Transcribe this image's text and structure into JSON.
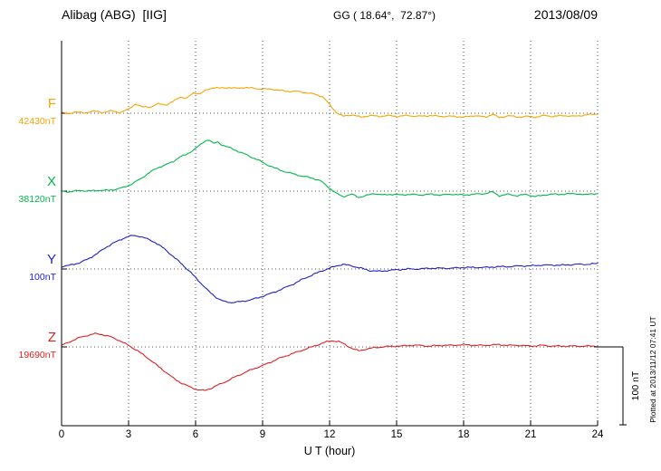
{
  "header": {
    "station": "Alibag (ABG)  [IIG]",
    "coords": "GG ( 18.64°,  72.87°)",
    "date": "2013/08/09"
  },
  "axis": {
    "xlabel": "U T (hour)"
  },
  "scalebar": {
    "label": "100 nT",
    "nT": 100
  },
  "footer": {
    "note": "Plotted at 2013/11/12 07:41 UT"
  },
  "chart_data": {
    "type": "line",
    "title": "Alibag (ABG) [IIG] magnetogram 2013/08/09",
    "xlabel": "U T (hour)",
    "ylabel": "",
    "x_range": [
      0,
      24
    ],
    "x_ticks": [
      0,
      3,
      6,
      9,
      12,
      15,
      18,
      21,
      24
    ],
    "baseline_spacing_nT": 100,
    "points_unit": "nT offset relative to each component baseline",
    "noise_nT": 1.1,
    "grid": "dotted vertical at 3h intervals, dotted horizontal at each baseline",
    "series": [
      {
        "name": "F",
        "baseline_label": "42430nT",
        "baseline_nT": 42430,
        "color": "#F5A400",
        "points": [
          [
            0,
            1
          ],
          [
            0.3,
            -1
          ],
          [
            0.6,
            2
          ],
          [
            1,
            0
          ],
          [
            1.4,
            3
          ],
          [
            1.8,
            1
          ],
          [
            2.2,
            3
          ],
          [
            2.6,
            1
          ],
          [
            3,
            5
          ],
          [
            3.3,
            12
          ],
          [
            3.6,
            8
          ],
          [
            4,
            8
          ],
          [
            4.3,
            12
          ],
          [
            4.7,
            11
          ],
          [
            5,
            15
          ],
          [
            5.3,
            21
          ],
          [
            5.6,
            19
          ],
          [
            5.9,
            26
          ],
          [
            6.2,
            25
          ],
          [
            6.5,
            30
          ],
          [
            6.8,
            33
          ],
          [
            7.1,
            32
          ],
          [
            7.4,
            33
          ],
          [
            7.8,
            32
          ],
          [
            8.2,
            33
          ],
          [
            8.6,
            32
          ],
          [
            9,
            31
          ],
          [
            9.4,
            31
          ],
          [
            9.8,
            29
          ],
          [
            10.2,
            28
          ],
          [
            10.6,
            28
          ],
          [
            11,
            26
          ],
          [
            11.4,
            24
          ],
          [
            11.7,
            21
          ],
          [
            12,
            11
          ],
          [
            12.3,
            1
          ],
          [
            12.6,
            -4
          ],
          [
            13,
            -2
          ],
          [
            13.4,
            -5
          ],
          [
            13.8,
            -3
          ],
          [
            14.2,
            -4
          ],
          [
            14.6,
            -3
          ],
          [
            15,
            -4
          ],
          [
            15.5,
            -3
          ],
          [
            16,
            -4
          ],
          [
            16.5,
            -3
          ],
          [
            17,
            -4
          ],
          [
            17.5,
            -4
          ],
          [
            18,
            -5
          ],
          [
            18.5,
            -3
          ],
          [
            19,
            -5
          ],
          [
            19.3,
            -1
          ],
          [
            19.6,
            -6
          ],
          [
            20,
            -3
          ],
          [
            20.4,
            -5
          ],
          [
            20.8,
            -4
          ],
          [
            21.2,
            -5
          ],
          [
            21.6,
            -3
          ],
          [
            22,
            -4
          ],
          [
            22.5,
            -3
          ],
          [
            23,
            -4
          ],
          [
            23.5,
            -2
          ],
          [
            24,
            -1
          ]
        ]
      },
      {
        "name": "X",
        "baseline_label": "38120nT",
        "baseline_nT": 38120,
        "color": "#00B84A",
        "points": [
          [
            0,
            0
          ],
          [
            0.4,
            -1
          ],
          [
            0.8,
            1
          ],
          [
            1.2,
            0
          ],
          [
            1.6,
            1
          ],
          [
            2,
            1
          ],
          [
            2.4,
            2
          ],
          [
            2.8,
            5
          ],
          [
            3.2,
            10
          ],
          [
            3.6,
            17
          ],
          [
            4,
            25
          ],
          [
            4.3,
            30
          ],
          [
            4.6,
            33
          ],
          [
            5,
            38
          ],
          [
            5.3,
            44
          ],
          [
            5.6,
            47
          ],
          [
            6,
            55
          ],
          [
            6.2,
            59
          ],
          [
            6.4,
            64
          ],
          [
            6.6,
            66
          ],
          [
            6.8,
            61
          ],
          [
            7,
            63
          ],
          [
            7.2,
            59
          ],
          [
            7.5,
            56
          ],
          [
            8,
            50
          ],
          [
            8.4,
            45
          ],
          [
            8.8,
            40
          ],
          [
            9.2,
            34
          ],
          [
            9.6,
            29
          ],
          [
            10,
            25
          ],
          [
            10.4,
            22
          ],
          [
            10.8,
            19
          ],
          [
            11.2,
            17
          ],
          [
            11.6,
            13
          ],
          [
            12,
            4
          ],
          [
            12.3,
            -3
          ],
          [
            12.6,
            -7
          ],
          [
            13,
            -4
          ],
          [
            13.3,
            -8
          ],
          [
            13.6,
            -6
          ],
          [
            14,
            -3
          ],
          [
            14.4,
            -5
          ],
          [
            14.8,
            -4
          ],
          [
            15.2,
            -5
          ],
          [
            15.6,
            -4
          ],
          [
            16,
            -5
          ],
          [
            16.5,
            -4
          ],
          [
            17,
            -5
          ],
          [
            17.5,
            -4
          ],
          [
            18,
            -5
          ],
          [
            18.5,
            -4
          ],
          [
            19,
            -3
          ],
          [
            19.3,
            -1
          ],
          [
            19.6,
            -6
          ],
          [
            20,
            -4
          ],
          [
            20.4,
            -6
          ],
          [
            20.8,
            -4
          ],
          [
            21.2,
            -7
          ],
          [
            21.6,
            -5
          ],
          [
            22,
            -4
          ],
          [
            22.5,
            -4
          ],
          [
            23,
            -3
          ],
          [
            23.4,
            -5
          ],
          [
            23.7,
            -3
          ],
          [
            24,
            -4
          ]
        ]
      },
      {
        "name": "Y",
        "baseline_label": "100nT",
        "baseline_nT": 100,
        "color": "#2020C8",
        "points": [
          [
            0,
            3
          ],
          [
            0.4,
            5
          ],
          [
            0.8,
            8
          ],
          [
            1.2,
            13
          ],
          [
            1.6,
            20
          ],
          [
            2,
            28
          ],
          [
            2.3,
            33
          ],
          [
            2.6,
            37
          ],
          [
            2.9,
            41
          ],
          [
            3.2,
            43
          ],
          [
            3.5,
            42
          ],
          [
            3.8,
            39
          ],
          [
            4.2,
            34
          ],
          [
            4.6,
            26
          ],
          [
            5,
            16
          ],
          [
            5.4,
            6
          ],
          [
            5.8,
            -5
          ],
          [
            6.2,
            -17
          ],
          [
            6.6,
            -29
          ],
          [
            7,
            -38
          ],
          [
            7.3,
            -42
          ],
          [
            7.6,
            -43
          ],
          [
            8,
            -42
          ],
          [
            8.4,
            -40
          ],
          [
            8.8,
            -37
          ],
          [
            9.2,
            -33
          ],
          [
            9.6,
            -29
          ],
          [
            10,
            -24
          ],
          [
            10.4,
            -19
          ],
          [
            10.8,
            -13
          ],
          [
            11.2,
            -8
          ],
          [
            11.6,
            -3
          ],
          [
            12,
            1
          ],
          [
            12.3,
            4
          ],
          [
            12.6,
            6
          ],
          [
            13,
            4
          ],
          [
            13.4,
            1
          ],
          [
            13.8,
            -2
          ],
          [
            14.2,
            -3
          ],
          [
            14.6,
            -2
          ],
          [
            15,
            -1
          ],
          [
            15.5,
            0
          ],
          [
            16,
            0
          ],
          [
            16.5,
            1
          ],
          [
            17,
            1
          ],
          [
            17.5,
            1
          ],
          [
            18,
            2
          ],
          [
            18.5,
            2
          ],
          [
            19,
            2
          ],
          [
            19.5,
            3
          ],
          [
            20,
            3
          ],
          [
            20.5,
            4
          ],
          [
            21,
            4
          ],
          [
            21.5,
            5
          ],
          [
            22,
            5
          ],
          [
            22.5,
            5
          ],
          [
            23,
            6
          ],
          [
            23.5,
            6
          ],
          [
            24,
            7
          ]
        ]
      },
      {
        "name": "Z",
        "baseline_label": "19690nT",
        "baseline_nT": 19690,
        "color": "#E02020",
        "points": [
          [
            0,
            2
          ],
          [
            0.4,
            7
          ],
          [
            0.8,
            12
          ],
          [
            1.2,
            15
          ],
          [
            1.5,
            17
          ],
          [
            1.8,
            16
          ],
          [
            2.2,
            13
          ],
          [
            2.6,
            8
          ],
          [
            3,
            2
          ],
          [
            3.4,
            -5
          ],
          [
            3.8,
            -13
          ],
          [
            4.2,
            -22
          ],
          [
            4.6,
            -31
          ],
          [
            5,
            -40
          ],
          [
            5.4,
            -47
          ],
          [
            5.8,
            -52
          ],
          [
            6.1,
            -55
          ],
          [
            6.4,
            -56
          ],
          [
            6.7,
            -53
          ],
          [
            7,
            -49
          ],
          [
            7.4,
            -44
          ],
          [
            7.8,
            -38
          ],
          [
            8.2,
            -33
          ],
          [
            8.6,
            -28
          ],
          [
            9,
            -24
          ],
          [
            9.4,
            -19
          ],
          [
            9.8,
            -14
          ],
          [
            10.2,
            -10
          ],
          [
            10.6,
            -6
          ],
          [
            11,
            -2
          ],
          [
            11.4,
            2
          ],
          [
            11.8,
            6
          ],
          [
            12.1,
            8
          ],
          [
            12.4,
            7
          ],
          [
            12.7,
            3
          ],
          [
            13,
            -2
          ],
          [
            13.3,
            -5
          ],
          [
            13.6,
            -3
          ],
          [
            14,
            -1
          ],
          [
            14.4,
            0
          ],
          [
            14.8,
            1
          ],
          [
            15.2,
            1
          ],
          [
            15.6,
            2
          ],
          [
            16,
            2
          ],
          [
            16.5,
            1
          ],
          [
            17,
            2
          ],
          [
            17.5,
            2
          ],
          [
            18,
            3
          ],
          [
            18.5,
            2
          ],
          [
            19,
            2
          ],
          [
            19.5,
            3
          ],
          [
            20,
            2
          ],
          [
            20.5,
            2
          ],
          [
            21,
            1
          ],
          [
            21.5,
            2
          ],
          [
            22,
            1
          ],
          [
            22.5,
            1
          ],
          [
            23,
            1
          ],
          [
            23.5,
            1
          ],
          [
            24,
            1
          ]
        ]
      }
    ]
  }
}
